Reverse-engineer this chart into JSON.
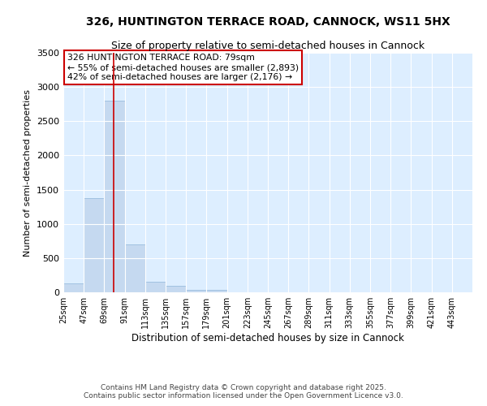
{
  "title": "326, HUNTINGTON TERRACE ROAD, CANNOCK, WS11 5HX",
  "subtitle": "Size of property relative to semi-detached houses in Cannock",
  "xlabel": "Distribution of semi-detached houses by size in Cannock",
  "ylabel": "Number of semi-detached properties",
  "property_size": 79,
  "annotation_title": "326 HUNTINGTON TERRACE ROAD: 79sqm",
  "annotation_line1": "← 55% of semi-detached houses are smaller (2,893)",
  "annotation_line2": "42% of semi-detached houses are larger (2,176) →",
  "bar_color": "#c5d9f0",
  "bar_edge_color": "#8eb4d8",
  "red_line_color": "#cc0000",
  "background_color": "#ddeeff",
  "bin_edges": [
    25,
    47,
    69,
    91,
    113,
    135,
    157,
    179,
    201,
    223,
    245,
    267,
    289,
    311,
    333,
    355,
    377,
    399,
    421,
    443,
    465
  ],
  "bin_counts": [
    130,
    1380,
    2800,
    700,
    160,
    90,
    40,
    30,
    5,
    2,
    1,
    0,
    0,
    0,
    0,
    0,
    0,
    0,
    0,
    0
  ],
  "ylim": [
    0,
    3500
  ],
  "yticks": [
    0,
    500,
    1000,
    1500,
    2000,
    2500,
    3000,
    3500
  ],
  "footer_line1": "Contains HM Land Registry data © Crown copyright and database right 2025.",
  "footer_line2": "Contains public sector information licensed under the Open Government Licence v3.0.",
  "annotation_box_color": "#ffffff",
  "annotation_box_edge": "#cc0000"
}
